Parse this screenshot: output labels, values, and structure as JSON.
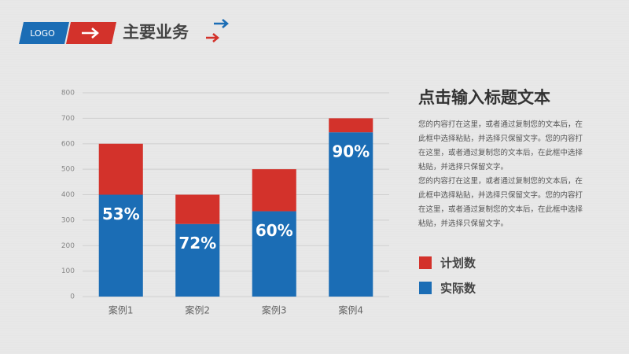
{
  "header": {
    "logo": "LOGO",
    "title": "主要业务"
  },
  "chart_data": {
    "type": "stacked_bar",
    "categories": [
      "案例1",
      "案例2",
      "案例3",
      "案例4"
    ],
    "series": [
      {
        "name": "实际数",
        "color": "#1b6db5",
        "values": [
          400,
          285,
          335,
          645
        ]
      },
      {
        "name": "计划数",
        "color": "#d3322b",
        "values": [
          200,
          115,
          165,
          55
        ]
      }
    ],
    "annotations": [
      "53%",
      "72%",
      "60%",
      "90%"
    ],
    "ylim": [
      0,
      800
    ],
    "yticks": [
      0,
      100,
      200,
      300,
      400,
      500,
      600,
      700,
      800
    ],
    "grid": true
  },
  "text": {
    "title": "点击输入标题文本",
    "paragraphs": [
      "您的内容打在这里，或者通过复制您的文本后，在此框中选择粘贴，并选择只保留文字。您的内容打在这里，或者通过复制您的文本后，在此框中选择粘贴，并选择只保留文字。",
      "您的内容打在这里，或者通过复制您的文本后，在此框中选择粘贴，并选择只保留文字。您的内容打在这里，或者通过复制您的文本后，在此框中选择粘贴，并选择只保留文字。"
    ]
  }
}
